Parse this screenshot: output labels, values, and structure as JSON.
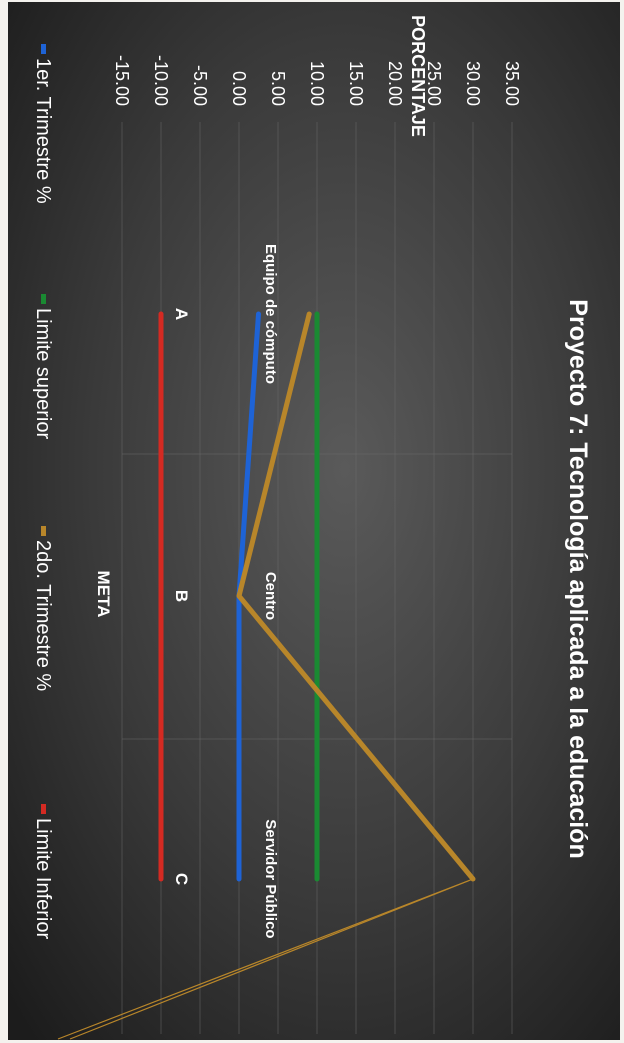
{
  "chart_data": {
    "type": "line",
    "title": "Proyecto  7: Tecnología  aplicada  a la educación",
    "ylabel": "PORCENTAJE",
    "xlabel": "META",
    "categories": [
      "A",
      "B",
      "C"
    ],
    "category_labels": [
      "Equipo de cómputo",
      "Centro",
      "Servidor Público"
    ],
    "y_ticks": [
      "35.00",
      "30.00",
      "25.00",
      "20.00",
      "15.00",
      "10.00",
      "5.00",
      "0.00",
      "-5.00",
      "-10.00",
      "-15.00"
    ],
    "ylim": [
      -15,
      35
    ],
    "grid": true,
    "legend_position": "bottom",
    "series": [
      {
        "name": "1er. Trimestre %",
        "values": [
          2.5,
          0,
          0
        ],
        "color": "#1e63d6"
      },
      {
        "name": "Limite superior",
        "values": [
          10,
          10,
          10
        ],
        "color": "#1a8a32"
      },
      {
        "name": "2do. Trimestre %",
        "values": [
          9,
          0,
          30
        ],
        "color": "#b8862a"
      },
      {
        "name": "Limite Inferior",
        "values": [
          -10,
          -10,
          -10
        ],
        "color": "#d42a22"
      }
    ]
  }
}
